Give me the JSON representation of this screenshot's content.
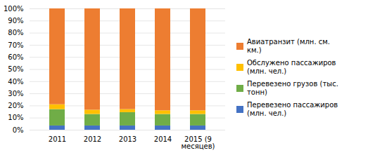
{
  "chart_data": {
    "type": "bar",
    "stacked": true,
    "categories": [
      "2011",
      "2012",
      "2013",
      "2014",
      "2015 (9\nмесяцев)"
    ],
    "series": [
      {
        "name": "Перевезено пассажиров\n(млн. чел.)",
        "color": "#4472C4",
        "values": [
          3.5,
          3.5,
          3.5,
          3.5,
          3.5
        ]
      },
      {
        "name": "Перевезено грузов (тыс.\nтонн)",
        "color": "#70AD47",
        "values": [
          13.5,
          9.5,
          11.0,
          9.5,
          9.5
        ]
      },
      {
        "name": "Обслужено пассажиров\n(млн. чел.)",
        "color": "#FFC000",
        "values": [
          4.0,
          3.5,
          2.5,
          3.0,
          3.0
        ]
      },
      {
        "name": "Авиатранзит (млн. см.\nкм.)",
        "color": "#ED7D31",
        "values": [
          79.0,
          83.5,
          83.0,
          84.0,
          84.0
        ]
      }
    ],
    "ylim": [
      0,
      100
    ],
    "yticks": [
      {
        "value": 0,
        "label": "0%"
      },
      {
        "value": 10,
        "label": "10%"
      },
      {
        "value": 20,
        "label": "20%"
      },
      {
        "value": 30,
        "label": "30%"
      },
      {
        "value": 40,
        "label": "40%"
      },
      {
        "value": 50,
        "label": "50%"
      },
      {
        "value": 60,
        "label": "60%"
      },
      {
        "value": 70,
        "label": "70%"
      },
      {
        "value": 80,
        "label": "80%"
      },
      {
        "value": 90,
        "label": "90%"
      },
      {
        "value": 100,
        "label": "100%"
      }
    ],
    "grid": true,
    "legend": "right"
  }
}
